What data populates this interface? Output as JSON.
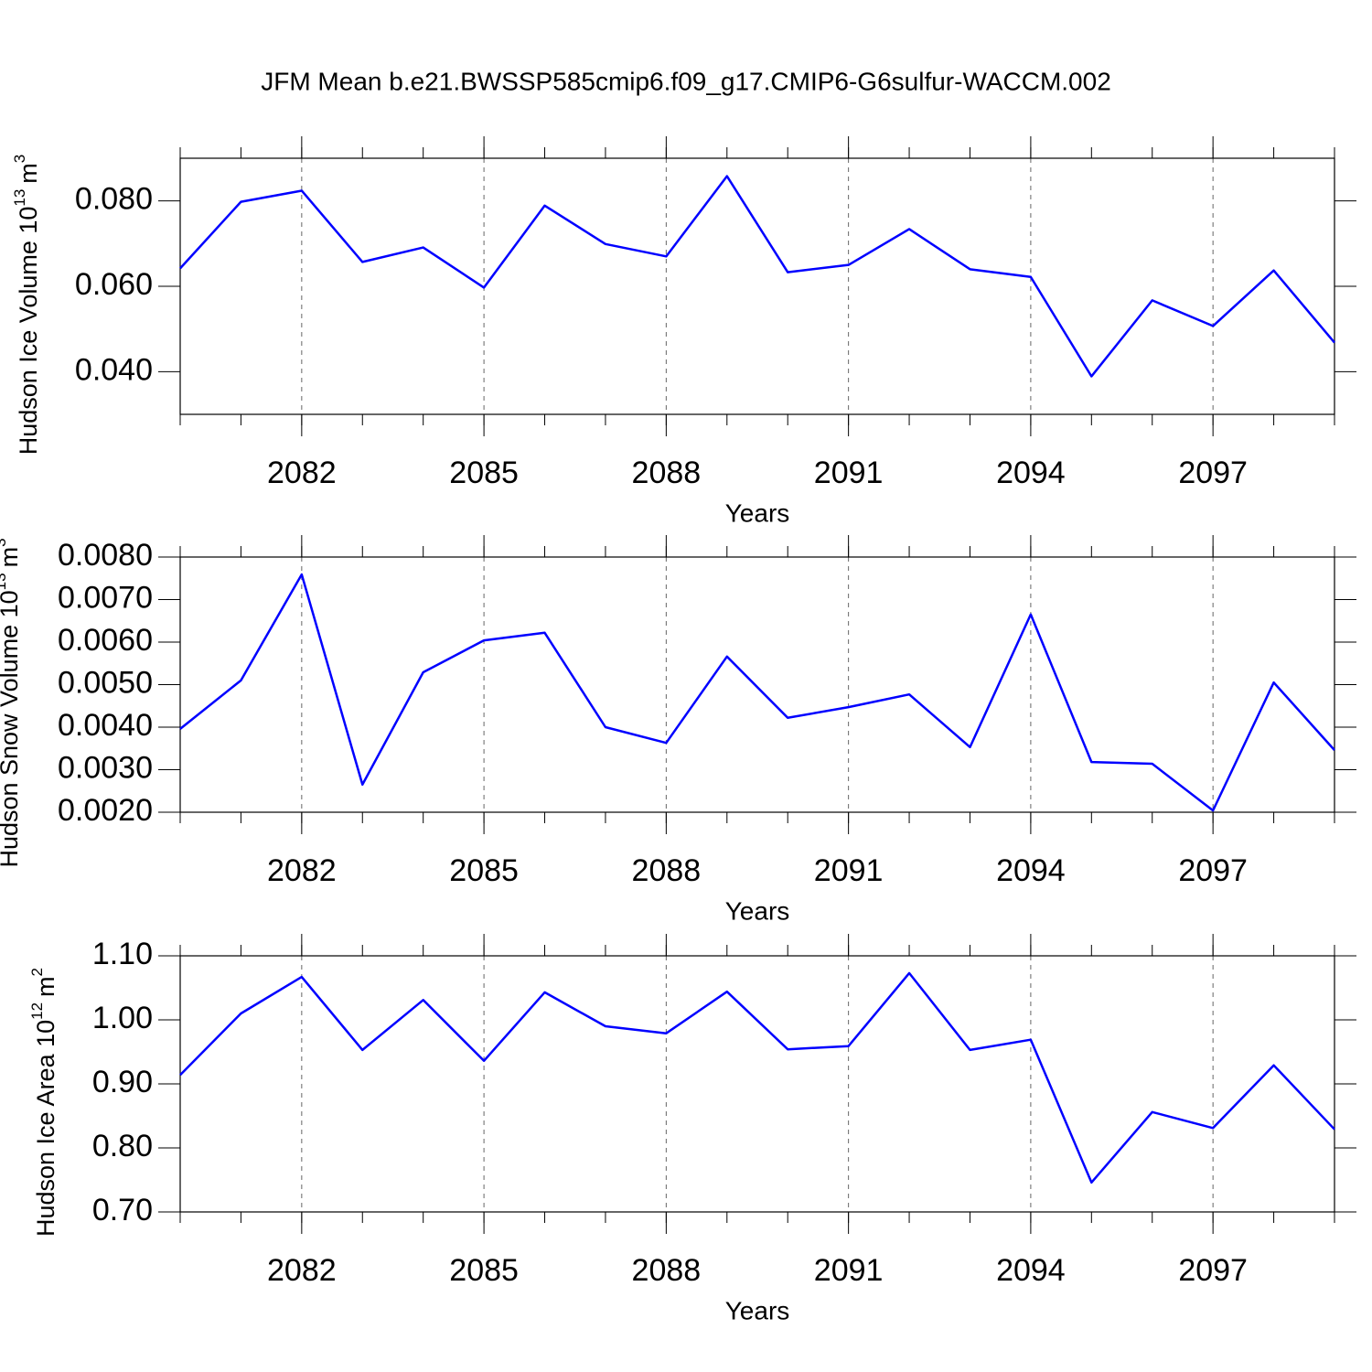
{
  "title": "JFM Mean b.e21.BWSSP585cmip6.f09_g17.CMIP6-G6sulfur-WACCM.002",
  "chart_data": [
    {
      "type": "line",
      "ylabel": "Hudson Ice Volume 10",
      "ylabel_exponent": "13",
      "ylabel_unit": "m",
      "ylabel_unit_exponent": "3",
      "xlabel": "Years",
      "x": [
        2080,
        2081,
        2082,
        2083,
        2084,
        2085,
        2086,
        2087,
        2088,
        2089,
        2090,
        2091,
        2092,
        2093,
        2094,
        2095,
        2096,
        2097,
        2098,
        2099
      ],
      "series": [
        {
          "color": "#0000ff",
          "values": [
            0.0642,
            0.0798,
            0.0824,
            0.0657,
            0.0691,
            0.0597,
            0.0789,
            0.0699,
            0.067,
            0.0858,
            0.0633,
            0.065,
            0.0734,
            0.064,
            0.0622,
            0.0389,
            0.0567,
            0.0507,
            0.0637,
            0.0468
          ]
        }
      ],
      "xlim": [
        2080,
        2099
      ],
      "xticks": [
        2082,
        2085,
        2088,
        2091,
        2094,
        2097
      ],
      "ylim": [
        0.03,
        0.09
      ],
      "yticks": [
        {
          "value": 0.04,
          "label": "0.040"
        },
        {
          "value": 0.06,
          "label": "0.060"
        },
        {
          "value": 0.08,
          "label": "0.080"
        }
      ],
      "xgrid": true
    },
    {
      "type": "line",
      "ylabel": "Hudson Snow Volume 10",
      "ylabel_exponent": "13",
      "ylabel_unit": "m",
      "ylabel_unit_exponent": "3",
      "xlabel": "Years",
      "x": [
        2080,
        2081,
        2082,
        2083,
        2084,
        2085,
        2086,
        2087,
        2088,
        2089,
        2090,
        2091,
        2092,
        2093,
        2094,
        2095,
        2096,
        2097,
        2098,
        2099
      ],
      "series": [
        {
          "color": "#0000ff",
          "values": [
            0.00396,
            0.0051,
            0.00759,
            0.00265,
            0.00529,
            0.00604,
            0.00622,
            0.004,
            0.00363,
            0.00566,
            0.00422,
            0.00447,
            0.00477,
            0.00353,
            0.00665,
            0.00318,
            0.00314,
            0.00204,
            0.00505,
            0.00346
          ]
        }
      ],
      "xlim": [
        2080,
        2099
      ],
      "xticks": [
        2082,
        2085,
        2088,
        2091,
        2094,
        2097
      ],
      "ylim": [
        0.002,
        0.008
      ],
      "yticks": [
        {
          "value": 0.002,
          "label": "0.0020"
        },
        {
          "value": 0.003,
          "label": "0.0030"
        },
        {
          "value": 0.004,
          "label": "0.0040"
        },
        {
          "value": 0.005,
          "label": "0.0050"
        },
        {
          "value": 0.006,
          "label": "0.0060"
        },
        {
          "value": 0.007,
          "label": "0.0070"
        },
        {
          "value": 0.008,
          "label": "0.0080"
        }
      ],
      "xgrid": true
    },
    {
      "type": "line",
      "ylabel": "Hudson Ice Area 10",
      "ylabel_exponent": "12",
      "ylabel_unit": "m",
      "ylabel_unit_exponent": "2",
      "xlabel": "Years",
      "x": [
        2080,
        2081,
        2082,
        2083,
        2084,
        2085,
        2086,
        2087,
        2088,
        2089,
        2090,
        2091,
        2092,
        2093,
        2094,
        2095,
        2096,
        2097,
        2098,
        2099
      ],
      "series": [
        {
          "color": "#0000ff",
          "values": [
            0.914,
            1.01,
            1.067,
            0.953,
            1.031,
            0.936,
            1.043,
            0.99,
            0.979,
            1.044,
            0.954,
            0.959,
            1.073,
            0.953,
            0.969,
            0.746,
            0.856,
            0.831,
            0.929,
            0.829
          ]
        }
      ],
      "xlim": [
        2080,
        2099
      ],
      "xticks": [
        2082,
        2085,
        2088,
        2091,
        2094,
        2097
      ],
      "ylim": [
        0.7,
        1.1
      ],
      "yticks": [
        {
          "value": 0.7,
          "label": "0.70"
        },
        {
          "value": 0.8,
          "label": "0.80"
        },
        {
          "value": 0.9,
          "label": "0.90"
        },
        {
          "value": 1.0,
          "label": "1.00"
        },
        {
          "value": 1.1,
          "label": "1.10"
        }
      ],
      "xgrid": true
    }
  ]
}
